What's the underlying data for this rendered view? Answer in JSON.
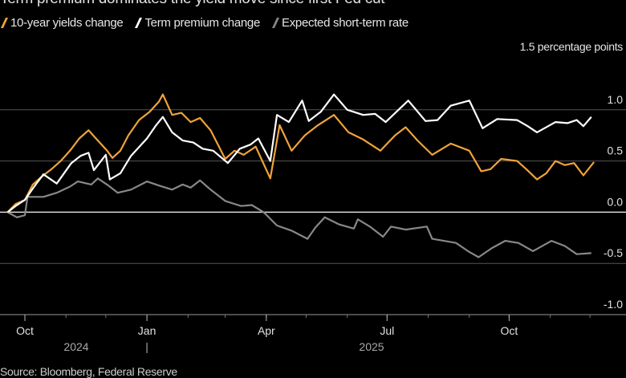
{
  "title": "Term premium dominates the yield move since first Fed cut",
  "source": "Source: Bloomberg, Federal Reserve",
  "chart_data": {
    "type": "line",
    "title": "Term premium dominates the yield move since first Fed cut",
    "unit_label": "1.5 percentage points",
    "ylim": [
      -1.0,
      1.5
    ],
    "yticks": [
      1.5,
      1.0,
      0.5,
      0.0,
      -0.5,
      -1.0
    ],
    "ytick_labels": [
      "1.0",
      "0.5",
      "0.0",
      "-0.5",
      "-1.0"
    ],
    "xlim": [
      "2024-09-18",
      "2025-12-04"
    ],
    "xticks": [
      {
        "date": "2024-10-01",
        "label": "Oct"
      },
      {
        "date": "2025-01-01",
        "label": "Jan"
      },
      {
        "date": "2025-04-01",
        "label": "Apr"
      },
      {
        "date": "2025-07-01",
        "label": "Jul"
      },
      {
        "date": "2025-10-01",
        "label": "Oct"
      }
    ],
    "year_labels": [
      "2024",
      "2025"
    ],
    "year_separator": "|",
    "grid": true,
    "legend_placement": "top-left",
    "series": [
      {
        "name": "10-year yields change",
        "color": "#f0a33a",
        "points": [
          [
            "2024-09-18",
            0.0
          ],
          [
            "2024-09-24",
            0.08
          ],
          [
            "2024-10-01",
            0.12
          ],
          [
            "2024-10-07",
            0.27
          ],
          [
            "2024-10-14",
            0.35
          ],
          [
            "2024-10-21",
            0.42
          ],
          [
            "2024-10-28",
            0.5
          ],
          [
            "2024-11-04",
            0.6
          ],
          [
            "2024-11-11",
            0.72
          ],
          [
            "2024-11-18",
            0.8
          ],
          [
            "2024-11-25",
            0.7
          ],
          [
            "2024-12-02",
            0.6
          ],
          [
            "2024-12-06",
            0.53
          ],
          [
            "2024-12-12",
            0.6
          ],
          [
            "2024-12-18",
            0.75
          ],
          [
            "2024-12-26",
            0.9
          ],
          [
            "2025-01-03",
            0.98
          ],
          [
            "2025-01-10",
            1.08
          ],
          [
            "2025-01-13",
            1.15
          ],
          [
            "2025-01-20",
            0.95
          ],
          [
            "2025-01-27",
            0.97
          ],
          [
            "2025-02-03",
            0.88
          ],
          [
            "2025-02-10",
            0.92
          ],
          [
            "2025-02-18",
            0.8
          ],
          [
            "2025-03-01",
            0.52
          ],
          [
            "2025-03-08",
            0.6
          ],
          [
            "2025-03-15",
            0.56
          ],
          [
            "2025-03-24",
            0.64
          ],
          [
            "2025-04-04",
            0.33
          ],
          [
            "2025-04-11",
            0.85
          ],
          [
            "2025-04-20",
            0.6
          ],
          [
            "2025-04-30",
            0.75
          ],
          [
            "2025-05-10",
            0.85
          ],
          [
            "2025-05-22",
            0.95
          ],
          [
            "2025-06-02",
            0.78
          ],
          [
            "2025-06-13",
            0.71
          ],
          [
            "2025-06-26",
            0.6
          ],
          [
            "2025-07-07",
            0.75
          ],
          [
            "2025-07-15",
            0.83
          ],
          [
            "2025-07-24",
            0.7
          ],
          [
            "2025-08-04",
            0.56
          ],
          [
            "2025-08-18",
            0.67
          ],
          [
            "2025-09-01",
            0.6
          ],
          [
            "2025-09-10",
            0.4
          ],
          [
            "2025-09-17",
            0.42
          ],
          [
            "2025-09-25",
            0.52
          ],
          [
            "2025-10-07",
            0.5
          ],
          [
            "2025-10-14",
            0.42
          ],
          [
            "2025-10-22",
            0.32
          ],
          [
            "2025-10-29",
            0.38
          ],
          [
            "2025-11-05",
            0.5
          ],
          [
            "2025-11-12",
            0.46
          ],
          [
            "2025-11-19",
            0.48
          ],
          [
            "2025-11-26",
            0.36
          ],
          [
            "2025-12-04",
            0.49
          ]
        ]
      },
      {
        "name": "Term premium change",
        "color": "#ffffff",
        "points": [
          [
            "2024-09-18",
            0.0
          ],
          [
            "2024-09-24",
            0.06
          ],
          [
            "2024-10-01",
            0.12
          ],
          [
            "2024-10-08",
            0.25
          ],
          [
            "2024-10-15",
            0.37
          ],
          [
            "2024-10-25",
            0.28
          ],
          [
            "2024-11-05",
            0.48
          ],
          [
            "2024-11-12",
            0.55
          ],
          [
            "2024-11-18",
            0.58
          ],
          [
            "2024-11-22",
            0.41
          ],
          [
            "2024-12-01",
            0.56
          ],
          [
            "2024-12-04",
            0.32
          ],
          [
            "2024-12-12",
            0.38
          ],
          [
            "2024-12-20",
            0.55
          ],
          [
            "2025-01-01",
            0.72
          ],
          [
            "2025-01-08",
            0.85
          ],
          [
            "2025-01-13",
            0.93
          ],
          [
            "2025-01-20",
            0.78
          ],
          [
            "2025-01-28",
            0.7
          ],
          [
            "2025-02-05",
            0.68
          ],
          [
            "2025-02-12",
            0.62
          ],
          [
            "2025-02-20",
            0.6
          ],
          [
            "2025-03-03",
            0.48
          ],
          [
            "2025-03-12",
            0.62
          ],
          [
            "2025-03-20",
            0.66
          ],
          [
            "2025-03-26",
            0.72
          ],
          [
            "2025-04-04",
            0.5
          ],
          [
            "2025-04-09",
            0.95
          ],
          [
            "2025-04-18",
            0.88
          ],
          [
            "2025-04-28",
            1.09
          ],
          [
            "2025-05-03",
            0.89
          ],
          [
            "2025-05-12",
            0.98
          ],
          [
            "2025-05-22",
            1.15
          ],
          [
            "2025-06-01",
            1.0
          ],
          [
            "2025-06-13",
            0.95
          ],
          [
            "2025-06-22",
            0.96
          ],
          [
            "2025-06-30",
            0.88
          ],
          [
            "2025-07-08",
            0.98
          ],
          [
            "2025-07-17",
            1.09
          ],
          [
            "2025-07-30",
            0.89
          ],
          [
            "2025-08-08",
            0.9
          ],
          [
            "2025-08-18",
            1.04
          ],
          [
            "2025-09-01",
            1.09
          ],
          [
            "2025-09-11",
            0.82
          ],
          [
            "2025-09-22",
            0.91
          ],
          [
            "2025-10-07",
            0.9
          ],
          [
            "2025-10-15",
            0.84
          ],
          [
            "2025-10-22",
            0.78
          ],
          [
            "2025-11-05",
            0.88
          ],
          [
            "2025-11-14",
            0.87
          ],
          [
            "2025-11-21",
            0.9
          ],
          [
            "2025-11-26",
            0.84
          ],
          [
            "2025-12-02",
            0.93
          ]
        ]
      },
      {
        "name": "Expected short-term rate",
        "color": "#888888",
        "points": [
          [
            "2024-09-18",
            0.0
          ],
          [
            "2024-09-25",
            -0.05
          ],
          [
            "2024-10-01",
            -0.03
          ],
          [
            "2024-10-03",
            0.15
          ],
          [
            "2024-10-15",
            0.15
          ],
          [
            "2024-10-25",
            0.19
          ],
          [
            "2024-11-04",
            0.25
          ],
          [
            "2024-11-10",
            0.3
          ],
          [
            "2024-11-20",
            0.27
          ],
          [
            "2024-11-25",
            0.33
          ],
          [
            "2024-12-03",
            0.26
          ],
          [
            "2024-12-10",
            0.19
          ],
          [
            "2024-12-20",
            0.22
          ],
          [
            "2025-01-01",
            0.3
          ],
          [
            "2025-01-10",
            0.26
          ],
          [
            "2025-01-20",
            0.22
          ],
          [
            "2025-01-28",
            0.27
          ],
          [
            "2025-02-03",
            0.24
          ],
          [
            "2025-02-10",
            0.31
          ],
          [
            "2025-02-18",
            0.22
          ],
          [
            "2025-03-01",
            0.11
          ],
          [
            "2025-03-13",
            0.06
          ],
          [
            "2025-03-21",
            0.07
          ],
          [
            "2025-03-30",
            0.0
          ],
          [
            "2025-04-09",
            -0.13
          ],
          [
            "2025-04-20",
            -0.18
          ],
          [
            "2025-05-02",
            -0.26
          ],
          [
            "2025-05-08",
            -0.15
          ],
          [
            "2025-05-15",
            -0.05
          ],
          [
            "2025-05-26",
            -0.12
          ],
          [
            "2025-06-06",
            -0.16
          ],
          [
            "2025-06-09",
            -0.07
          ],
          [
            "2025-06-18",
            -0.14
          ],
          [
            "2025-06-28",
            -0.24
          ],
          [
            "2025-07-04",
            -0.14
          ],
          [
            "2025-07-15",
            -0.17
          ],
          [
            "2025-07-31",
            -0.14
          ],
          [
            "2025-08-04",
            -0.26
          ],
          [
            "2025-08-22",
            -0.3
          ],
          [
            "2025-08-31",
            -0.38
          ],
          [
            "2025-09-08",
            -0.44
          ],
          [
            "2025-09-18",
            -0.35
          ],
          [
            "2025-09-28",
            -0.28
          ],
          [
            "2025-10-08",
            -0.3
          ],
          [
            "2025-10-19",
            -0.38
          ],
          [
            "2025-11-02",
            -0.28
          ],
          [
            "2025-11-12",
            -0.33
          ],
          [
            "2025-11-21",
            -0.41
          ],
          [
            "2025-12-02",
            -0.4
          ]
        ]
      }
    ]
  }
}
